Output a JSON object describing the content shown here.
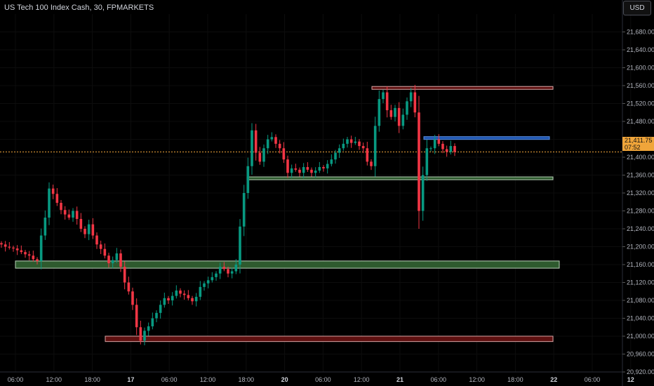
{
  "header": {
    "symbol_title": "US Tech 100 Index Cash, 30, FPMARKETS"
  },
  "toolbar": {
    "currency_label": "USD"
  },
  "last_price": {
    "value": "21,411.75",
    "countdown": "07:52"
  },
  "colors": {
    "up": "#089981",
    "down": "#f23645",
    "background": "#000000",
    "demand_zone_fill": "#2e5a2e",
    "supply_zone_fill": "#5e1010",
    "fvg_fill": "#1e55b0"
  },
  "chart_data": {
    "type": "candlestick",
    "title": "US Tech 100 Index Cash, 30, FPMARKETS",
    "xlabel": "",
    "ylabel": "",
    "ylim": [
      20920,
      21720
    ],
    "x_tick_labels": [
      "06:00",
      "12:00",
      "18:00",
      "17",
      "06:00",
      "12:00",
      "18:00",
      "20",
      "06:00",
      "12:00",
      "21",
      "06:00",
      "12:00",
      "18:00",
      "22",
      "06:00",
      "12"
    ],
    "y_tick_labels": [
      "21,680.00",
      "21,640.00",
      "21,600.00",
      "21,560.00",
      "21,520.00",
      "21,480.00",
      "21,440.00",
      "21,400.00",
      "21,360.00",
      "21,320.00",
      "21,280.00",
      "21,240.00",
      "21,200.00",
      "21,160.00",
      "21,120.00",
      "21,080.00",
      "21,040.00",
      "21,000.00",
      "20,960.00",
      "20,920.00"
    ],
    "last_price": 21411.75,
    "zones": [
      {
        "kind": "supply",
        "bottom": 21553,
        "top": 21558
      },
      {
        "kind": "fvg",
        "bottom": 21440,
        "top": 21446
      },
      {
        "kind": "demand",
        "bottom": 21350,
        "top": 21356
      },
      {
        "kind": "demand",
        "bottom": 21152,
        "top": 21168
      },
      {
        "kind": "supply",
        "bottom": 20988,
        "top": 21000
      }
    ],
    "closes": [
      21205,
      21200,
      21198,
      21196,
      21192,
      21188,
      21183,
      21180,
      21172,
      21168,
      21225,
      21265,
      21330,
      21318,
      21298,
      21282,
      21272,
      21265,
      21280,
      21262,
      21240,
      21228,
      21250,
      21225,
      21205,
      21195,
      21180,
      21163,
      21170,
      21185,
      21155,
      21120,
      21100,
      21070,
      21020,
      20990,
      21012,
      21022,
      21040,
      21052,
      21070,
      21085,
      21080,
      21090,
      21102,
      21095,
      21092,
      21085,
      21078,
      21088,
      21110,
      21118,
      21125,
      21132,
      21140,
      21155,
      21150,
      21140,
      21145,
      21160,
      21245,
      21320,
      21380,
      21460,
      21410,
      21390,
      21420,
      21440,
      21445,
      21430,
      21420,
      21395,
      21365,
      21375,
      21372,
      21365,
      21378,
      21372,
      21365,
      21370,
      21378,
      21375,
      21385,
      21395,
      21410,
      21420,
      21430,
      21440,
      21432,
      21435,
      21425,
      21420,
      21390,
      21380,
      21470,
      21530,
      21545,
      21505,
      21490,
      21510,
      21470,
      21495,
      21525,
      21545,
      21500,
      21280,
      21360,
      21420,
      21420,
      21440,
      21430,
      21418,
      21412,
      21425,
      21411.75
    ]
  }
}
